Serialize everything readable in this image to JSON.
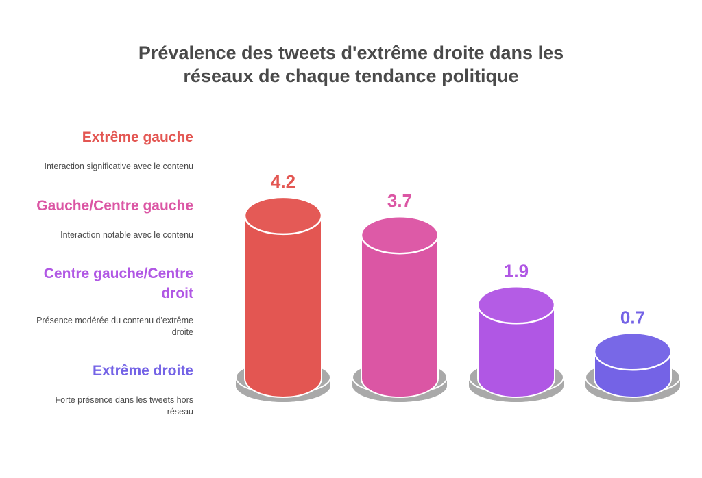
{
  "title": {
    "line1": "Prévalence des tweets d'extrême droite dans les",
    "line2": "réseaux de chaque tendance politique"
  },
  "legend": [
    {
      "label": "Extrême gauche",
      "description": "Interaction significative avec le contenu",
      "color": "#e35652"
    },
    {
      "label": "Gauche/Centre gauche",
      "description": "Interaction notable avec le contenu",
      "color": "#db56a4"
    },
    {
      "label_line1": "Centre gauche/Centre",
      "label_line2": "droit",
      "description_line1": "Présence modérée du contenu d'extrême",
      "description_line2": "droite",
      "color": "#b057e4"
    },
    {
      "label": "Extrême droite",
      "description_line1": "Forte présence dans les tweets hors",
      "description_line2": "réseau",
      "color": "#7463e6"
    }
  ],
  "chart_data": {
    "type": "bar",
    "style": "3d-cylinder",
    "categories": [
      "Extrême gauche",
      "Gauche/Centre gauche",
      "Centre gauche/Centre droit",
      "Extrême droite"
    ],
    "values": [
      4.2,
      3.7,
      1.9,
      0.7
    ],
    "value_labels": [
      "4.2",
      "3.7",
      "1.9",
      "0.7"
    ],
    "colors": [
      "#e35652",
      "#db56a4",
      "#b057e4",
      "#7463e6"
    ],
    "top_colors": [
      "#e45a56",
      "#dd5aa7",
      "#b45ce5",
      "#7868e7"
    ],
    "base_color": "#a9a9a9",
    "title": "Prévalence des tweets d'extrême droite dans les réseaux de chaque tendance politique",
    "xlabel": "",
    "ylabel": "",
    "grid": false,
    "legend_position": "left"
  }
}
